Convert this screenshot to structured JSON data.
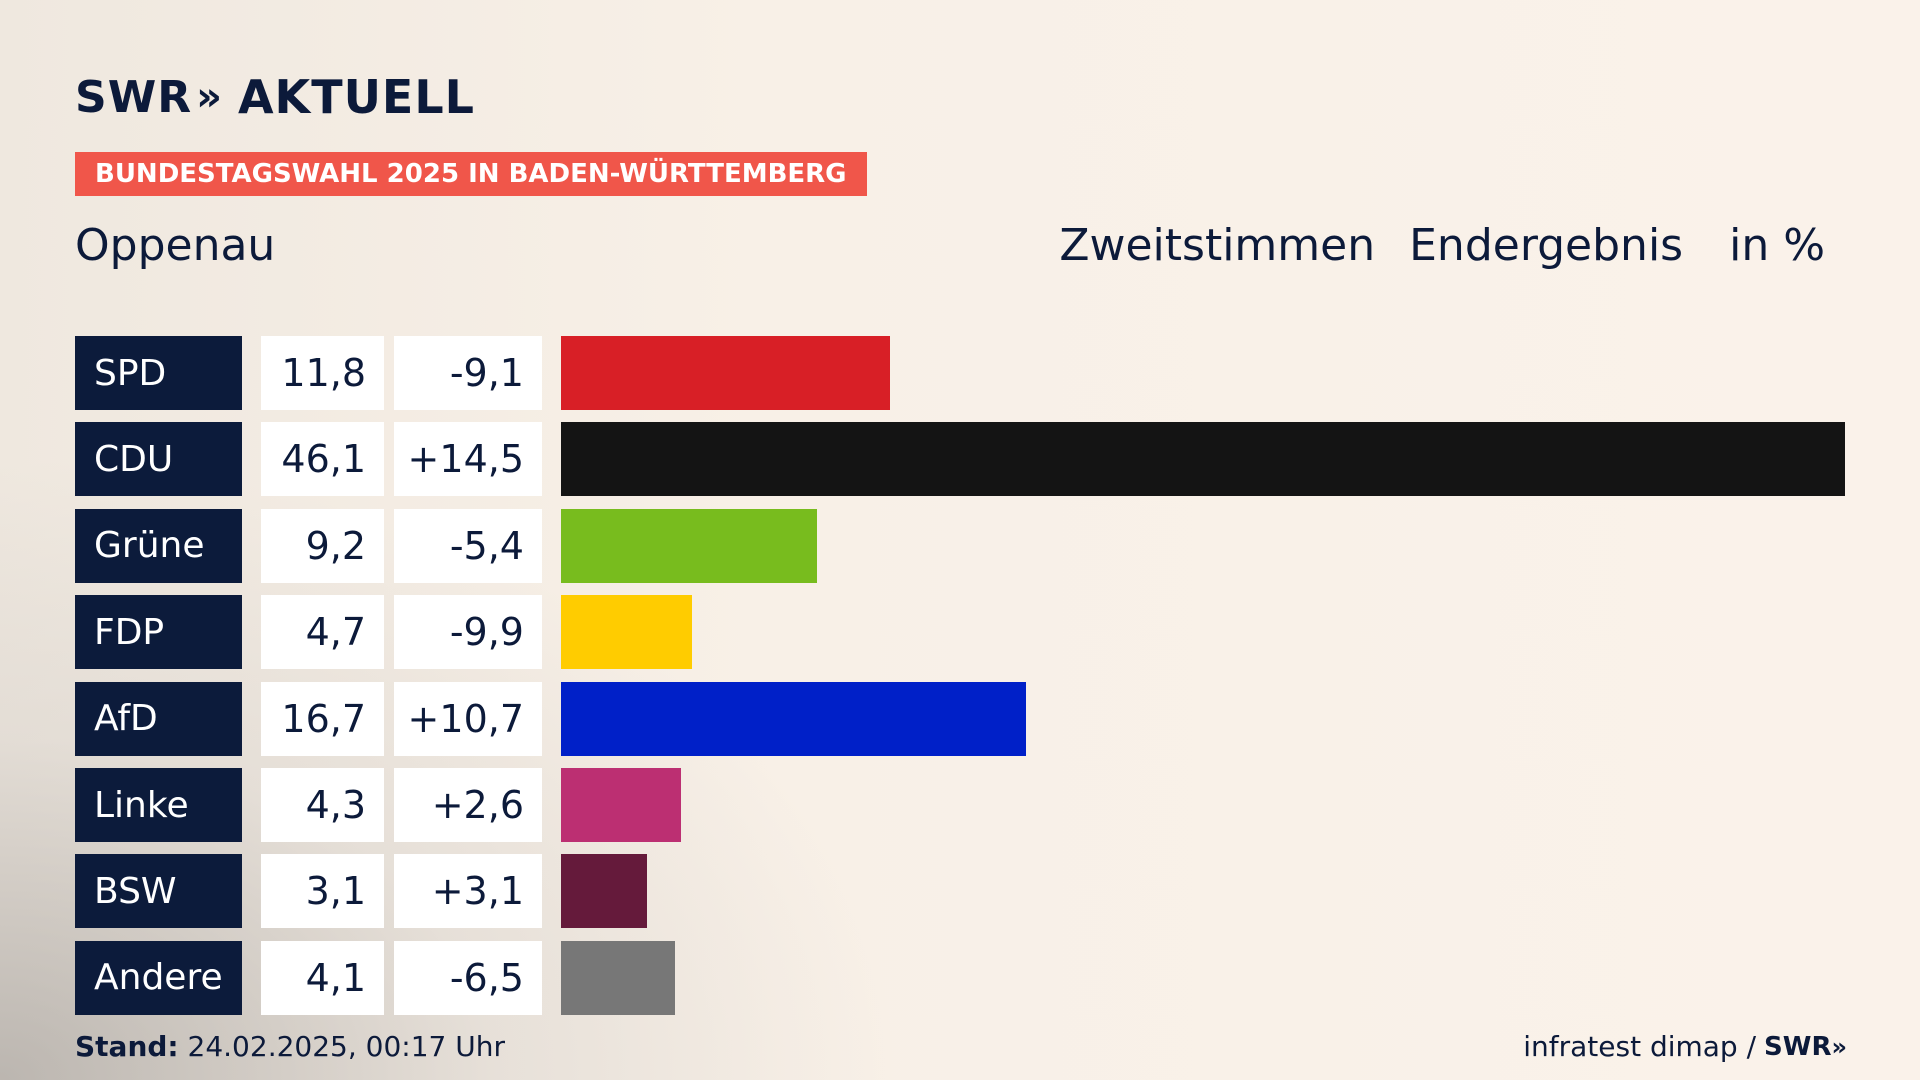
{
  "brand": {
    "swr": "SWR",
    "aktuell": "AKTUELL"
  },
  "banner": "BUNDESTAGSWAHL 2025 IN BADEN-WÜRTTEMBERG",
  "region": "Oppenau",
  "header": {
    "vote_type": "Zweitstimmen",
    "status": "Endergebnis",
    "unit": "in %"
  },
  "chart_data": {
    "type": "bar",
    "orientation": "horizontal",
    "categories": [
      "SPD",
      "CDU",
      "Grüne",
      "FDP",
      "AfD",
      "Linke",
      "BSW",
      "Andere"
    ],
    "values": [
      11.8,
      46.1,
      9.2,
      4.7,
      16.7,
      4.3,
      3.1,
      4.1
    ],
    "value_labels": [
      "11,8",
      "46,1",
      "9,2",
      "4,7",
      "16,7",
      "4,3",
      "3,1",
      "4,1"
    ],
    "diff_labels": [
      "-9,1",
      "+14,5",
      "-5,4",
      "-9,9",
      "+10,7",
      "+2,6",
      "+3,1",
      "-6,5"
    ],
    "colors": [
      "#d81f26",
      "#141414",
      "#78bc1e",
      "#ffcc00",
      "#0020c8",
      "#bc2f72",
      "#651a3b",
      "#777777"
    ],
    "xlim": [
      0,
      46.1
    ]
  },
  "footer": {
    "stand_label": "Stand:",
    "stand_value": "24.02.2025, 00:17 Uhr",
    "source": "infratest dimap /",
    "source_brand": "SWR"
  }
}
